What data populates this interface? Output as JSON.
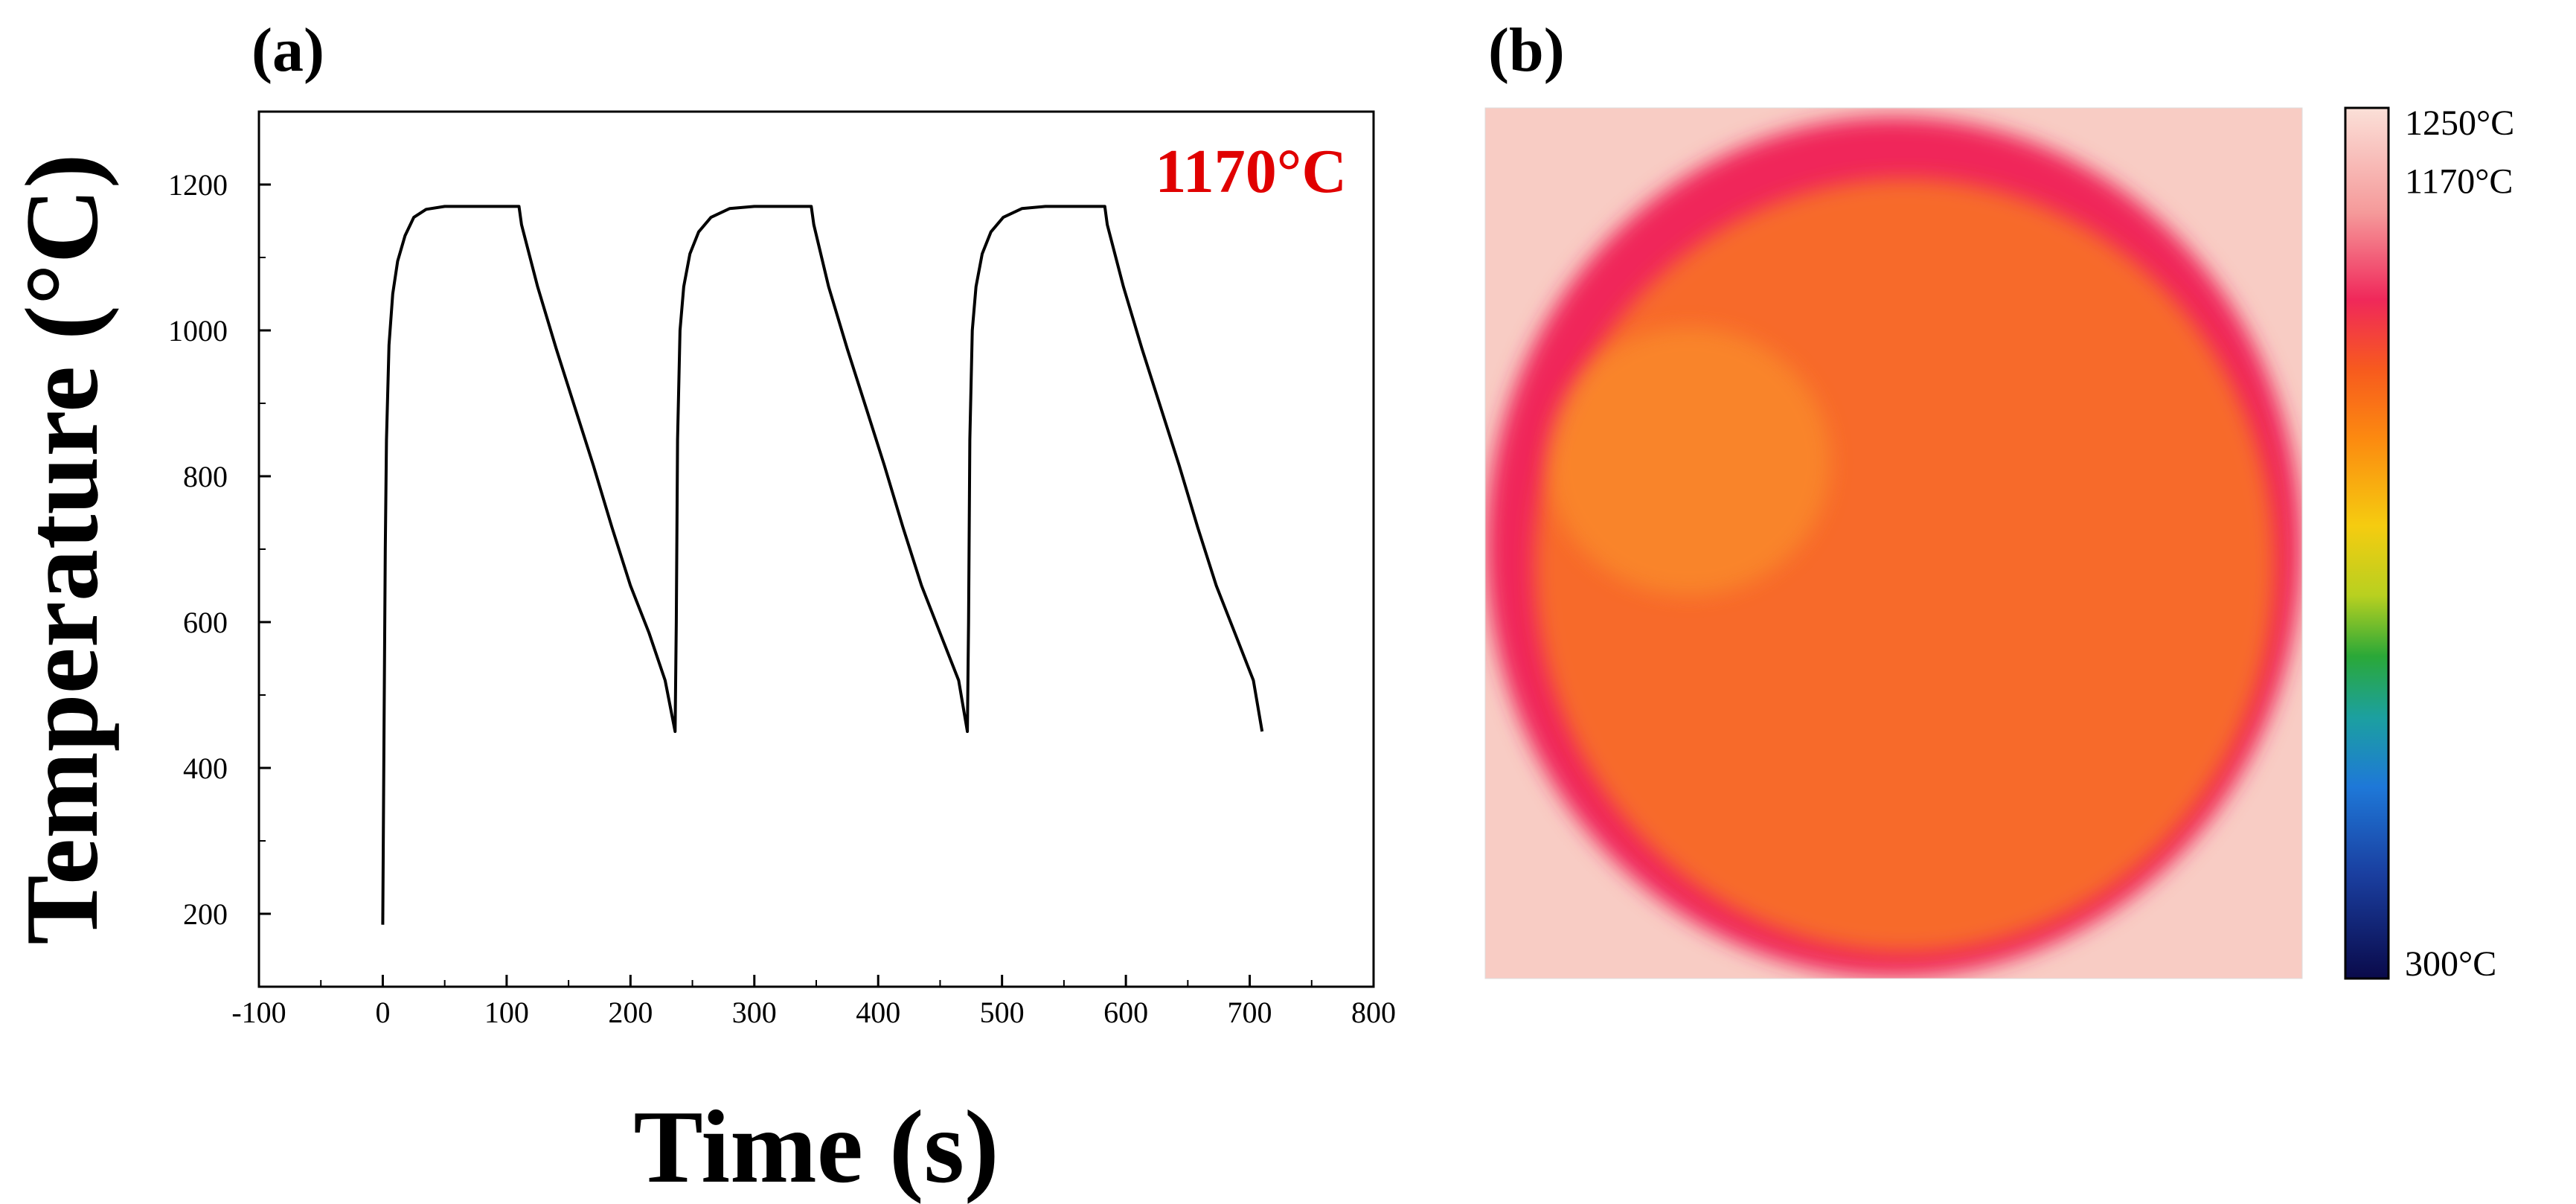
{
  "panels": {
    "a_label": "(a)",
    "b_label": "(b)"
  },
  "chart_data": [
    {
      "type": "line",
      "panel": "(a)",
      "title": "",
      "xlabel": "Time (s)",
      "ylabel": "Temperature (°C)",
      "xlim": [
        -100,
        800
      ],
      "ylim": [
        100,
        1300
      ],
      "x_ticks": [
        -100,
        0,
        100,
        200,
        300,
        400,
        500,
        600,
        700,
        800
      ],
      "x_tick_labels": [
        "-100",
        "0",
        "100",
        "200",
        "300",
        "400",
        "500",
        "600",
        "700",
        "800"
      ],
      "y_ticks": [
        200,
        400,
        600,
        800,
        1000,
        1200
      ],
      "y_tick_labels": [
        "200",
        "400",
        "600",
        "800",
        "1000",
        "1200"
      ],
      "grid": false,
      "annotation": {
        "text": "1170°C",
        "color": "#e00000"
      },
      "series": [
        {
          "name": "Temperature",
          "color": "#000000",
          "x": [
            0,
            1,
            2,
            3,
            5,
            8,
            12,
            18,
            25,
            35,
            50,
            70,
            90,
            110,
            112,
            125,
            140,
            155,
            170,
            185,
            200,
            215,
            228,
            236,
            237,
            238,
            240,
            243,
            248,
            255,
            265,
            280,
            300,
            320,
            346,
            348,
            360,
            375,
            390,
            405,
            420,
            435,
            450,
            465,
            472,
            473,
            474,
            476,
            479,
            484,
            491,
            501,
            516,
            535,
            560,
            583,
            585,
            598,
            613,
            628,
            643,
            658,
            673,
            688,
            703,
            710
          ],
          "y": [
            185,
            450,
            700,
            850,
            980,
            1050,
            1095,
            1130,
            1155,
            1166,
            1170,
            1170,
            1170,
            1170,
            1145,
            1060,
            975,
            895,
            815,
            730,
            650,
            585,
            520,
            450,
            600,
            850,
            1000,
            1060,
            1105,
            1135,
            1155,
            1167,
            1170,
            1170,
            1170,
            1145,
            1060,
            975,
            895,
            815,
            730,
            650,
            585,
            520,
            450,
            600,
            850,
            1000,
            1060,
            1105,
            1135,
            1155,
            1167,
            1170,
            1170,
            1170,
            1145,
            1060,
            975,
            895,
            815,
            730,
            650,
            585,
            520,
            450
          ]
        }
      ]
    },
    {
      "type": "heatmap",
      "panel": "(b)",
      "description_units": "°C",
      "colorbar": {
        "min": 300,
        "max": 1250,
        "labels": [
          {
            "text": "1250°C",
            "value": 1250
          },
          {
            "text": "1170°C",
            "value": 1170
          },
          {
            "text": "300°C",
            "value": 300
          }
        ],
        "stops": [
          {
            "offset": 0.0,
            "color": "#fbe0d8"
          },
          {
            "offset": 0.12,
            "color": "#f59a9a"
          },
          {
            "offset": 0.22,
            "color": "#f0285a"
          },
          {
            "offset": 0.3,
            "color": "#f75a1e"
          },
          {
            "offset": 0.38,
            "color": "#fc8a10"
          },
          {
            "offset": 0.48,
            "color": "#f5cc10"
          },
          {
            "offset": 0.56,
            "color": "#b8d020"
          },
          {
            "offset": 0.63,
            "color": "#2aa838"
          },
          {
            "offset": 0.7,
            "color": "#1ca0a0"
          },
          {
            "offset": 0.78,
            "color": "#1e78d8"
          },
          {
            "offset": 0.88,
            "color": "#1a3fa0"
          },
          {
            "offset": 1.0,
            "color": "#0a0a4a"
          }
        ]
      },
      "colors": {
        "background": "#f8ccc4",
        "rim": "#f0285a",
        "core": "#f76a2a",
        "hotspot": "#fb9a2a"
      }
    }
  ]
}
